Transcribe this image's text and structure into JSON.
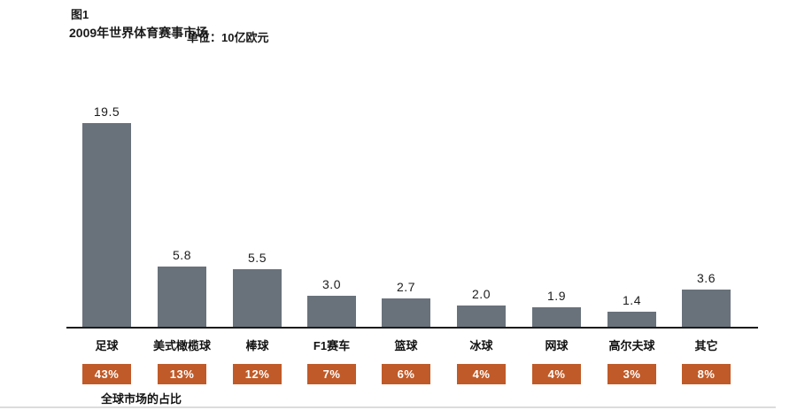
{
  "header": {
    "figure_label": "图1",
    "title": "2009年世界体育赛事市场",
    "unit_label": "单位：10亿欧元"
  },
  "chart_data": {
    "type": "bar",
    "title": "2009年世界体育赛事市场",
    "unit": "10亿欧元",
    "categories": [
      "足球",
      "美式橄榄球",
      "棒球",
      "F1赛车",
      "篮球",
      "冰球",
      "网球",
      "高尔夫球",
      "其它"
    ],
    "values": [
      19.5,
      5.8,
      5.5,
      3.0,
      2.7,
      2.0,
      1.9,
      1.4,
      3.6
    ],
    "value_labels": [
      "19.5",
      "5.8",
      "5.5",
      "3.0",
      "2.7",
      "2.0",
      "1.9",
      "1.4",
      "3.6"
    ],
    "percent_labels": [
      "43%",
      "13%",
      "12%",
      "7%",
      "6%",
      "4%",
      "4%",
      "3%",
      "8%"
    ],
    "xlabel": "",
    "ylabel": "",
    "ylim": [
      0,
      20.5
    ],
    "grid": false,
    "legend": "none",
    "bar_color": "#69727B",
    "badge_color": "#C05A28",
    "percent_row_caption": "全球市场的占比"
  },
  "footer": {
    "caption": "全球市场的占比"
  }
}
